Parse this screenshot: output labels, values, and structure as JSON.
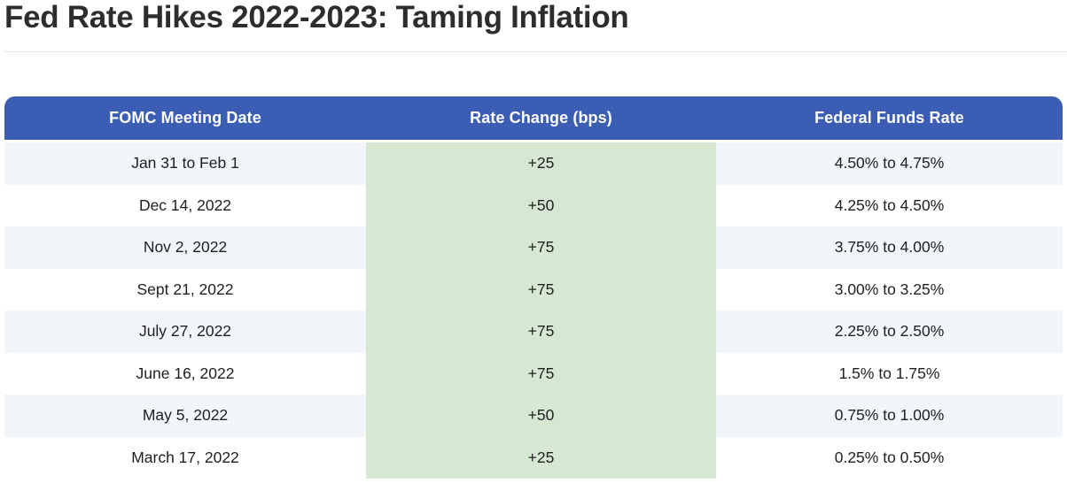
{
  "page": {
    "title": "Fed Rate Hikes 2022-2023: Taming Inflation"
  },
  "colors": {
    "header_bg": "#3b5eb4",
    "header_text": "#ffffff",
    "rate_change_column_bg": "#d7e8d2",
    "alt_row_bg": "#f2f5fa",
    "cell_text": "#1f1f1f"
  },
  "table": {
    "columns": [
      "FOMC Meeting Date",
      "Rate Change (bps)",
      "Federal Funds Rate"
    ],
    "rows": [
      {
        "date": "Jan 31 to Feb 1",
        "change": "+25",
        "rate": "4.50% to 4.75%"
      },
      {
        "date": "Dec 14, 2022",
        "change": "+50",
        "rate": "4.25% to 4.50%"
      },
      {
        "date": "Nov 2, 2022",
        "change": "+75",
        "rate": "3.75% to 4.00%"
      },
      {
        "date": "Sept 21, 2022",
        "change": "+75",
        "rate": "3.00% to 3.25%"
      },
      {
        "date": "July 27, 2022",
        "change": "+75",
        "rate": "2.25% to 2.50%"
      },
      {
        "date": "June 16, 2022",
        "change": "+75",
        "rate": "1.5% to 1.75%"
      },
      {
        "date": "May 5, 2022",
        "change": "+50",
        "rate": "0.75% to 1.00%"
      },
      {
        "date": "March 17, 2022",
        "change": "+25",
        "rate": "0.25% to 0.50%"
      }
    ]
  },
  "chart_data": {
    "type": "table",
    "title": "Fed Rate Hikes 2022-2023: Taming Inflation",
    "columns": [
      "FOMC Meeting Date",
      "Rate Change (bps)",
      "Federal Funds Rate"
    ],
    "rows": [
      [
        "Jan 31 to Feb 1",
        "+25",
        "4.50% to 4.75%"
      ],
      [
        "Dec 14, 2022",
        "+50",
        "4.25% to 4.50%"
      ],
      [
        "Nov 2, 2022",
        "+75",
        "3.75% to 4.00%"
      ],
      [
        "Sept 21, 2022",
        "+75",
        "3.00% to 3.25%"
      ],
      [
        "July 27, 2022",
        "+75",
        "2.25% to 2.50%"
      ],
      [
        "June 16, 2022",
        "+75",
        "1.5% to 1.75%"
      ],
      [
        "May 5, 2022",
        "+50",
        "0.75% to 1.00%"
      ],
      [
        "March 17, 2022",
        "+25",
        "0.25% to 0.50%"
      ]
    ]
  }
}
